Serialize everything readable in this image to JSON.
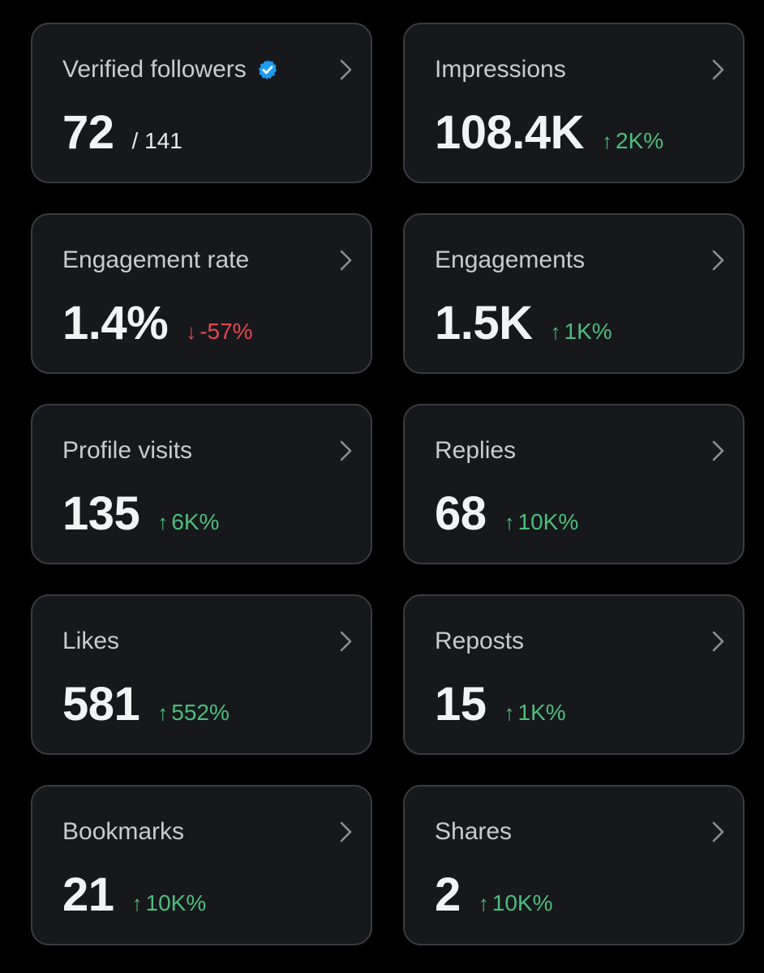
{
  "colors": {
    "background": "#000000",
    "card": "#16181c",
    "card_border": "#3a3c42",
    "positive": "#4cbf7c",
    "negative": "#e5484d",
    "verified": "#1d9bf0"
  },
  "icons": {
    "verified": "verified-badge-icon",
    "chevron": "chevron-right-icon"
  },
  "metrics": [
    {
      "label": "Verified followers",
      "value": "72",
      "total": "/ 141"
    },
    {
      "label": "Impressions",
      "value": "108.4K",
      "arrow": "↑",
      "change": "2K%"
    },
    {
      "label": "Engagement rate",
      "value": "1.4%",
      "arrow": "↓",
      "change": "-57%"
    },
    {
      "label": "Engagements",
      "value": "1.5K",
      "arrow": "↑",
      "change": "1K%"
    },
    {
      "label": "Profile visits",
      "value": "135",
      "arrow": "↑",
      "change": "6K%"
    },
    {
      "label": "Replies",
      "value": "68",
      "arrow": "↑",
      "change": "10K%"
    },
    {
      "label": "Likes",
      "value": "581",
      "arrow": "↑",
      "change": "552%"
    },
    {
      "label": "Reposts",
      "value": "15",
      "arrow": "↑",
      "change": "1K%"
    },
    {
      "label": "Bookmarks",
      "value": "21",
      "arrow": "↑",
      "change": "10K%"
    },
    {
      "label": "Shares",
      "value": "2",
      "arrow": "↑",
      "change": "10K%"
    }
  ]
}
